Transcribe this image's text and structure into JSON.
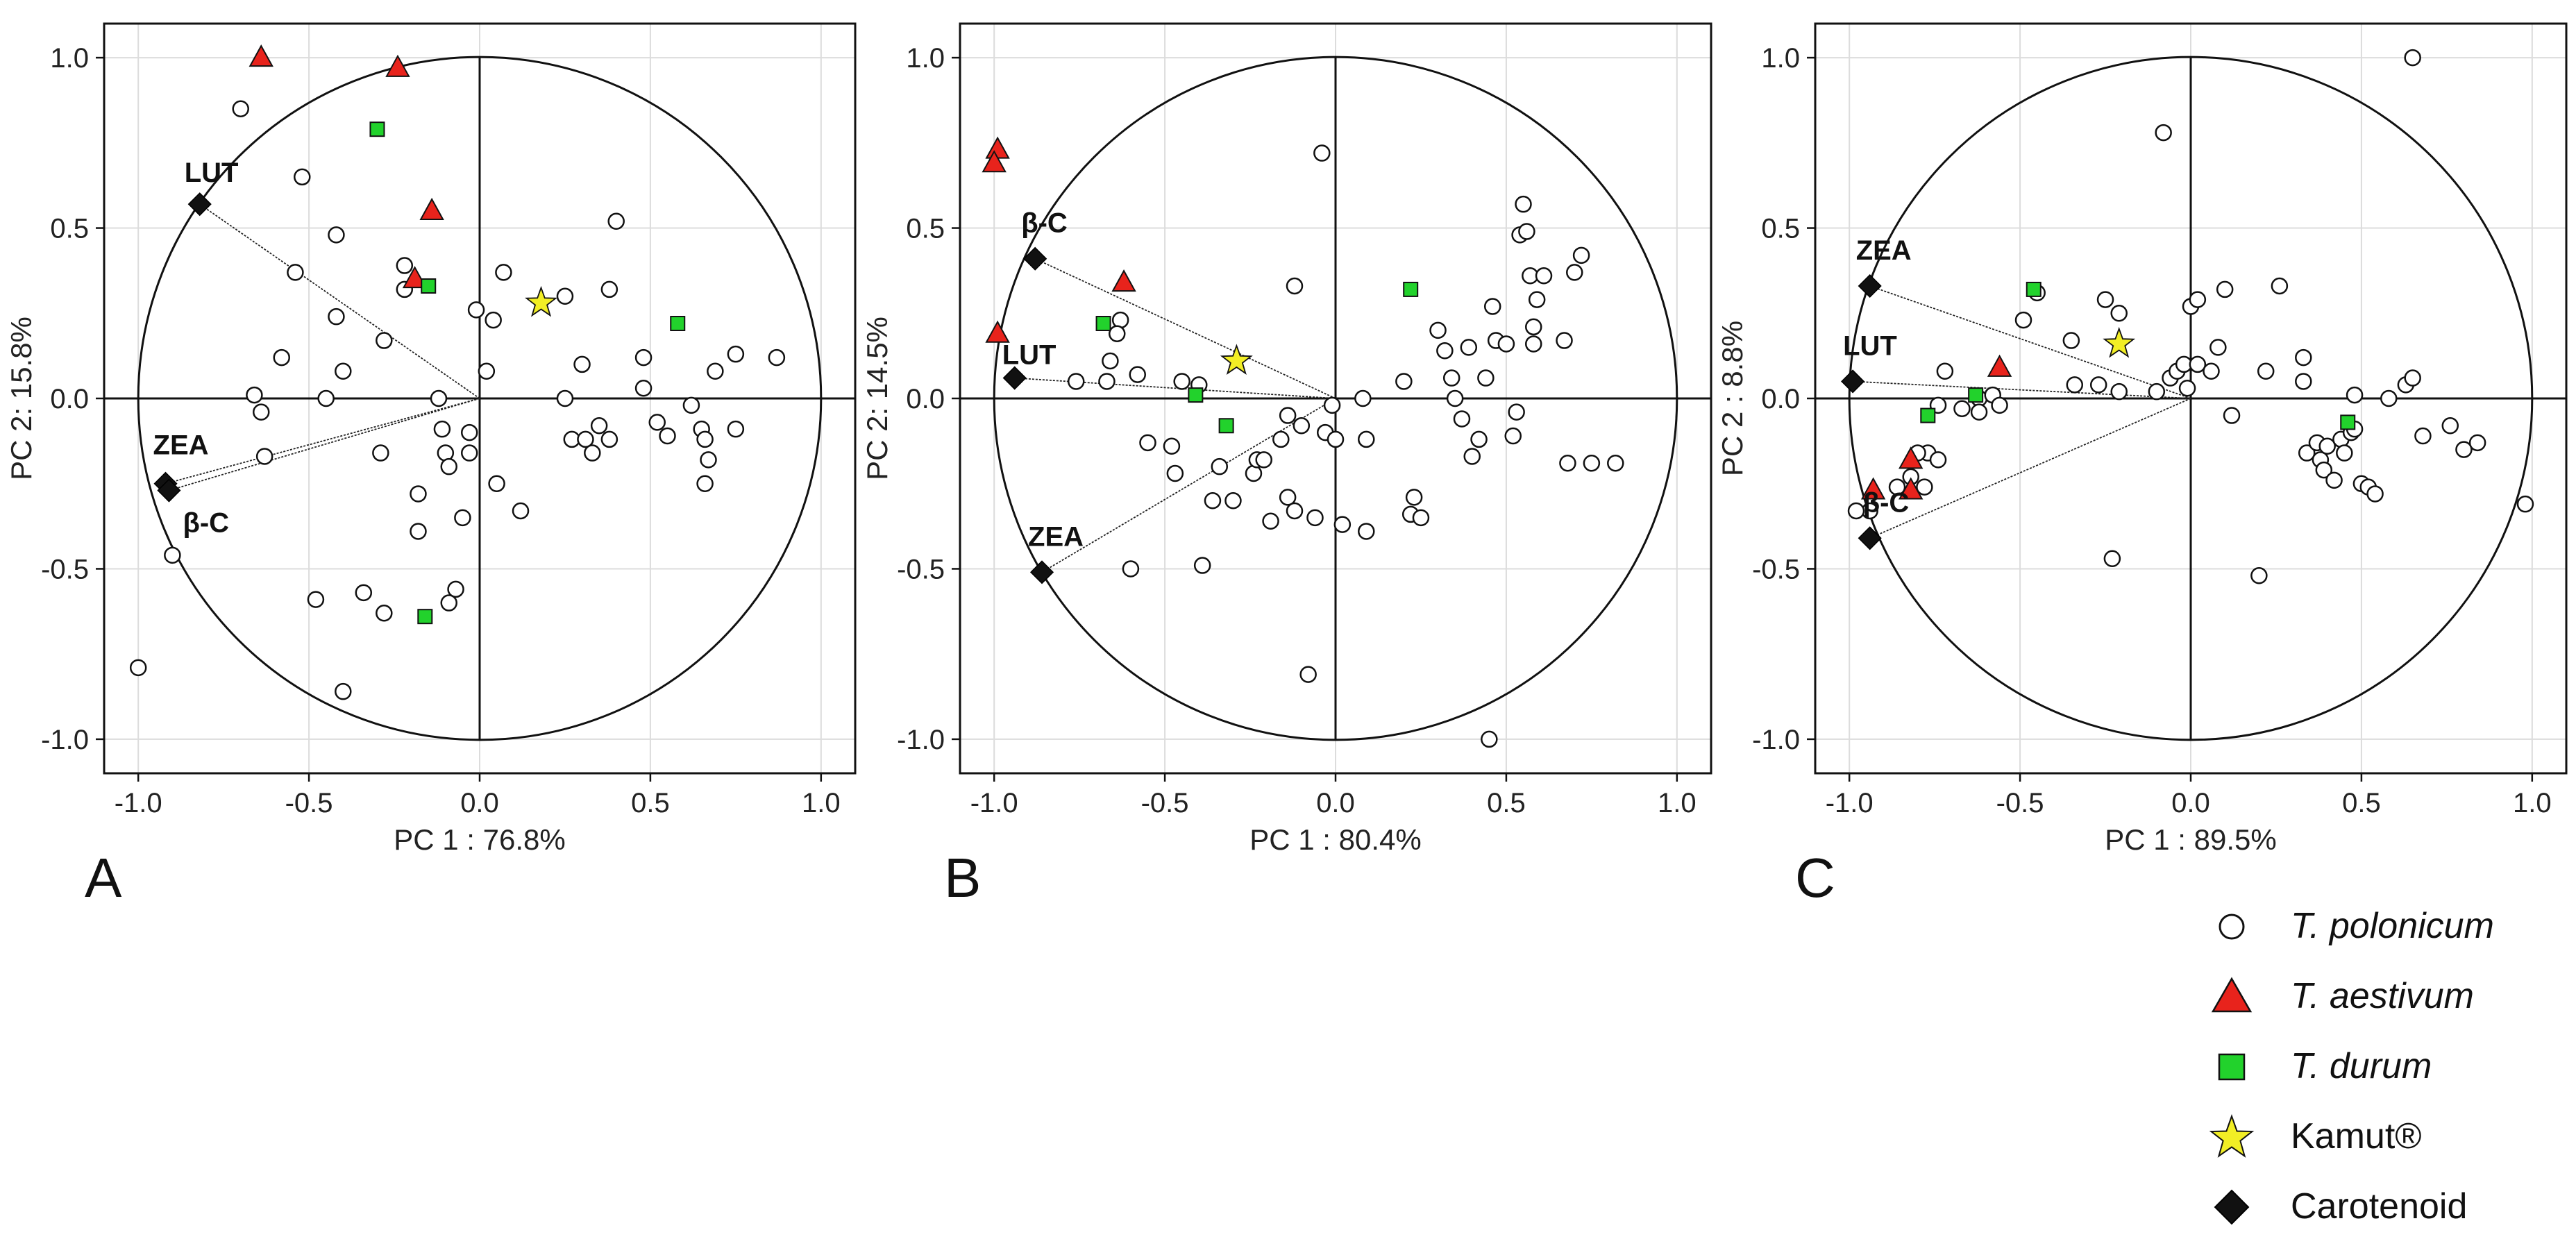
{
  "figure": {
    "title": ""
  },
  "legend": {
    "items": [
      {
        "key": "polonicum",
        "label": "T. polonicum",
        "italic": true,
        "marker": "circle",
        "color": "#ffffff"
      },
      {
        "key": "aestivum",
        "label": "T. aestivum",
        "italic": true,
        "marker": "triangle",
        "color": "#e8231c"
      },
      {
        "key": "durum",
        "label": "T. durum",
        "italic": true,
        "marker": "square",
        "color": "#22d22c"
      },
      {
        "key": "kamut",
        "label": "Kamut®",
        "italic": false,
        "marker": "star",
        "color": "#f2ee25"
      },
      {
        "key": "carotenoid",
        "label": "Carotenoid",
        "italic": false,
        "marker": "diamond",
        "color": "#111111"
      }
    ]
  },
  "chart_data": [
    {
      "panel": "A",
      "type": "scatter",
      "xlabel": "PC 1 : 76.8%",
      "ylabel": "PC 2: 15.8%",
      "xlim": [
        -1.1,
        1.1
      ],
      "ylim": [
        -1.1,
        1.1
      ],
      "xticks": [
        "-1.0",
        "-0.5",
        "0.0",
        "0.5",
        "1.0"
      ],
      "yticks": [
        "1.0",
        "0.5",
        "0.0",
        "-0.5",
        "-1.0"
      ],
      "grid": true,
      "loadings": [
        {
          "label": "LUT",
          "x": -0.82,
          "y": 0.57
        },
        {
          "label": "ZEA",
          "x": -0.92,
          "y": -0.25
        },
        {
          "label": "β-C",
          "x": -0.91,
          "y": -0.27
        }
      ],
      "series": [
        {
          "name": "T. polonicum",
          "points": [
            [
              -0.7,
              0.85
            ],
            [
              -0.52,
              0.65
            ],
            [
              -0.42,
              0.48
            ],
            [
              -0.54,
              0.37
            ],
            [
              -0.42,
              0.24
            ],
            [
              -0.58,
              0.12
            ],
            [
              -0.4,
              0.08
            ],
            [
              -0.28,
              0.17
            ],
            [
              -0.66,
              0.01
            ],
            [
              -0.64,
              -0.04
            ],
            [
              -0.63,
              -0.17
            ],
            [
              -0.45,
              0.0
            ],
            [
              -0.29,
              -0.16
            ],
            [
              -0.22,
              0.39
            ],
            [
              -0.22,
              0.32
            ],
            [
              -0.12,
              0.0
            ],
            [
              -0.11,
              -0.09
            ],
            [
              -0.1,
              -0.16
            ],
            [
              -0.09,
              -0.2
            ],
            [
              -0.03,
              -0.1
            ],
            [
              -0.03,
              -0.16
            ],
            [
              -0.01,
              0.26
            ],
            [
              0.02,
              0.08
            ],
            [
              0.04,
              0.23
            ],
            [
              0.07,
              0.37
            ],
            [
              0.05,
              -0.25
            ],
            [
              0.12,
              -0.33
            ],
            [
              -0.05,
              -0.35
            ],
            [
              -0.18,
              -0.28
            ],
            [
              -0.18,
              -0.39
            ],
            [
              -0.07,
              -0.56
            ],
            [
              -0.09,
              -0.6
            ],
            [
              -0.28,
              -0.63
            ],
            [
              -0.34,
              -0.57
            ],
            [
              -0.48,
              -0.59
            ],
            [
              -0.4,
              -0.86
            ],
            [
              -0.9,
              -0.46
            ],
            [
              -1.0,
              -0.79
            ],
            [
              0.25,
              0.0
            ],
            [
              0.25,
              0.3
            ],
            [
              0.3,
              0.1
            ],
            [
              0.38,
              0.32
            ],
            [
              0.4,
              0.52
            ],
            [
              0.27,
              -0.12
            ],
            [
              0.31,
              -0.12
            ],
            [
              0.33,
              -0.16
            ],
            [
              0.35,
              -0.08
            ],
            [
              0.38,
              -0.12
            ],
            [
              0.48,
              0.03
            ],
            [
              0.48,
              0.12
            ],
            [
              0.52,
              -0.07
            ],
            [
              0.55,
              -0.11
            ],
            [
              0.62,
              -0.02
            ],
            [
              0.65,
              -0.09
            ],
            [
              0.66,
              -0.12
            ],
            [
              0.66,
              -0.25
            ],
            [
              0.67,
              -0.18
            ],
            [
              0.69,
              0.08
            ],
            [
              0.75,
              0.13
            ],
            [
              0.75,
              -0.09
            ],
            [
              0.87,
              0.12
            ]
          ]
        },
        {
          "name": "T. aestivum",
          "points": [
            [
              -0.64,
              1.0
            ],
            [
              -0.24,
              0.97
            ],
            [
              -0.14,
              0.55
            ],
            [
              -0.19,
              0.35
            ]
          ]
        },
        {
          "name": "T. durum",
          "points": [
            [
              -0.3,
              0.79
            ],
            [
              -0.15,
              0.33
            ],
            [
              0.58,
              0.22
            ],
            [
              -0.16,
              -0.64
            ]
          ]
        },
        {
          "name": "Kamut®",
          "points": [
            [
              0.18,
              0.28
            ]
          ]
        }
      ]
    },
    {
      "panel": "B",
      "type": "scatter",
      "xlabel": "PC 1 : 80.4%",
      "ylabel": "PC 2: 14.5%",
      "xlim": [
        -1.1,
        1.1
      ],
      "ylim": [
        -1.1,
        1.1
      ],
      "xticks": [
        "-1.0",
        "-0.5",
        "0.0",
        "0.5",
        "1.0"
      ],
      "yticks": [
        "1.0",
        "0.5",
        "0.0",
        "-0.5",
        "-1.0"
      ],
      "grid": true,
      "loadings": [
        {
          "label": "β-C",
          "x": -0.88,
          "y": 0.41
        },
        {
          "label": "LUT",
          "x": -0.94,
          "y": 0.06
        },
        {
          "label": "ZEA",
          "x": -0.86,
          "y": -0.51
        }
      ],
      "series": [
        {
          "name": "T. polonicum",
          "points": [
            [
              -0.04,
              0.72
            ],
            [
              -0.12,
              0.33
            ],
            [
              -0.63,
              0.23
            ],
            [
              -0.64,
              0.19
            ],
            [
              -0.76,
              0.05
            ],
            [
              -0.67,
              0.05
            ],
            [
              -0.66,
              0.11
            ],
            [
              -0.45,
              0.05
            ],
            [
              -0.4,
              0.04
            ],
            [
              -0.58,
              0.07
            ],
            [
              -0.55,
              -0.13
            ],
            [
              -0.48,
              -0.14
            ],
            [
              -0.47,
              -0.22
            ],
            [
              -0.34,
              -0.2
            ],
            [
              -0.36,
              -0.3
            ],
            [
              -0.3,
              -0.3
            ],
            [
              -0.24,
              -0.22
            ],
            [
              -0.23,
              -0.18
            ],
            [
              -0.21,
              -0.18
            ],
            [
              -0.16,
              -0.12
            ],
            [
              -0.19,
              -0.36
            ],
            [
              -0.14,
              -0.05
            ],
            [
              -0.14,
              -0.29
            ],
            [
              -0.12,
              -0.33
            ],
            [
              -0.1,
              -0.08
            ],
            [
              -0.06,
              -0.35
            ],
            [
              -0.08,
              -0.81
            ],
            [
              -0.03,
              -0.1
            ],
            [
              -0.01,
              -0.02
            ],
            [
              0.0,
              -0.12
            ],
            [
              0.02,
              -0.37
            ],
            [
              0.08,
              0.0
            ],
            [
              0.09,
              -0.12
            ],
            [
              0.09,
              -0.39
            ],
            [
              -0.39,
              -0.49
            ],
            [
              -0.6,
              -0.5
            ],
            [
              0.2,
              0.05
            ],
            [
              0.23,
              -0.29
            ],
            [
              0.22,
              -0.34
            ],
            [
              0.25,
              -0.35
            ],
            [
              0.3,
              0.2
            ],
            [
              0.32,
              0.14
            ],
            [
              0.34,
              0.06
            ],
            [
              0.35,
              0.0
            ],
            [
              0.37,
              -0.06
            ],
            [
              0.39,
              0.15
            ],
            [
              0.4,
              -0.17
            ],
            [
              0.42,
              -0.12
            ],
            [
              0.44,
              0.06
            ],
            [
              0.46,
              0.27
            ],
            [
              0.47,
              0.17
            ],
            [
              0.5,
              0.16
            ],
            [
              0.52,
              -0.11
            ],
            [
              0.53,
              -0.04
            ],
            [
              0.54,
              0.48
            ],
            [
              0.55,
              0.57
            ],
            [
              0.56,
              0.49
            ],
            [
              0.57,
              0.36
            ],
            [
              0.58,
              0.21
            ],
            [
              0.58,
              0.16
            ],
            [
              0.59,
              0.29
            ],
            [
              0.61,
              0.36
            ],
            [
              0.67,
              0.17
            ],
            [
              0.68,
              -0.19
            ],
            [
              0.7,
              0.37
            ],
            [
              0.72,
              0.42
            ],
            [
              0.75,
              -0.19
            ],
            [
              0.82,
              -0.19
            ],
            [
              0.45,
              -1.0
            ]
          ]
        },
        {
          "name": "T. aestivum",
          "points": [
            [
              -0.99,
              0.73
            ],
            [
              -1.0,
              0.69
            ],
            [
              -0.99,
              0.19
            ],
            [
              -0.62,
              0.34
            ]
          ]
        },
        {
          "name": "T. durum",
          "points": [
            [
              -0.68,
              0.22
            ],
            [
              -0.41,
              0.01
            ],
            [
              -0.32,
              -0.08
            ],
            [
              0.22,
              0.32
            ]
          ]
        },
        {
          "name": "Kamut®",
          "points": [
            [
              -0.29,
              0.11
            ]
          ]
        }
      ]
    },
    {
      "panel": "C",
      "type": "scatter",
      "xlabel": "PC 1 : 89.5%",
      "ylabel": "PC 2 : 8.8%",
      "xlim": [
        -1.1,
        1.1
      ],
      "ylim": [
        -1.1,
        1.1
      ],
      "xticks": [
        "-1.0",
        "-0.5",
        "0.0",
        "0.5",
        "1.0"
      ],
      "yticks": [
        "1.0",
        "0.5",
        "0.0",
        "-0.5",
        "-1.0"
      ],
      "grid": true,
      "loadings": [
        {
          "label": "ZEA",
          "x": -0.94,
          "y": 0.33
        },
        {
          "label": "LUT",
          "x": -0.99,
          "y": 0.05
        },
        {
          "label": "β-C",
          "x": -0.94,
          "y": -0.41
        }
      ],
      "series": [
        {
          "name": "T. polonicum",
          "points": [
            [
              0.65,
              1.0
            ],
            [
              -0.08,
              0.78
            ],
            [
              -0.45,
              0.31
            ],
            [
              -0.49,
              0.23
            ],
            [
              -0.35,
              0.17
            ],
            [
              -0.25,
              0.29
            ],
            [
              -0.21,
              0.25
            ],
            [
              -0.34,
              0.04
            ],
            [
              -0.27,
              0.04
            ],
            [
              -0.21,
              0.02
            ],
            [
              -0.1,
              0.02
            ],
            [
              -0.06,
              0.06
            ],
            [
              -0.04,
              0.08
            ],
            [
              -0.02,
              0.1
            ],
            [
              -0.01,
              0.03
            ],
            [
              0.0,
              0.27
            ],
            [
              0.02,
              0.29
            ],
            [
              0.02,
              0.1
            ],
            [
              0.06,
              0.08
            ],
            [
              0.08,
              0.15
            ],
            [
              0.1,
              0.32
            ],
            [
              0.12,
              -0.05
            ],
            [
              0.22,
              0.08
            ],
            [
              0.26,
              0.33
            ],
            [
              -0.62,
              0.0
            ],
            [
              -0.58,
              0.01
            ],
            [
              -0.56,
              -0.02
            ],
            [
              -0.62,
              -0.04
            ],
            [
              -0.67,
              -0.03
            ],
            [
              -0.72,
              0.08
            ],
            [
              -0.74,
              -0.02
            ],
            [
              -0.77,
              -0.16
            ],
            [
              -0.74,
              -0.18
            ],
            [
              -0.8,
              -0.16
            ],
            [
              -0.78,
              -0.26
            ],
            [
              -0.82,
              -0.23
            ],
            [
              -0.86,
              -0.26
            ],
            [
              -0.94,
              -0.33
            ],
            [
              -0.98,
              -0.33
            ],
            [
              -0.23,
              -0.47
            ],
            [
              0.2,
              -0.52
            ],
            [
              0.33,
              0.12
            ],
            [
              0.33,
              0.05
            ],
            [
              0.34,
              -0.16
            ],
            [
              0.37,
              -0.13
            ],
            [
              0.38,
              -0.18
            ],
            [
              0.39,
              -0.21
            ],
            [
              0.4,
              -0.14
            ],
            [
              0.42,
              -0.24
            ],
            [
              0.44,
              -0.12
            ],
            [
              0.45,
              -0.16
            ],
            [
              0.47,
              -0.1
            ],
            [
              0.48,
              -0.09
            ],
            [
              0.48,
              0.01
            ],
            [
              0.5,
              -0.25
            ],
            [
              0.52,
              -0.26
            ],
            [
              0.54,
              -0.28
            ],
            [
              0.58,
              0.0
            ],
            [
              0.63,
              0.04
            ],
            [
              0.65,
              0.06
            ],
            [
              0.68,
              -0.11
            ],
            [
              0.76,
              -0.08
            ],
            [
              0.8,
              -0.15
            ],
            [
              0.84,
              -0.13
            ],
            [
              0.98,
              -0.31
            ]
          ]
        },
        {
          "name": "T. aestivum",
          "points": [
            [
              -0.56,
              0.09
            ],
            [
              -0.82,
              -0.18
            ],
            [
              -0.93,
              -0.27
            ],
            [
              -0.82,
              -0.27
            ]
          ]
        },
        {
          "name": "T. durum",
          "points": [
            [
              -0.46,
              0.32
            ],
            [
              -0.63,
              0.01
            ],
            [
              -0.77,
              -0.05
            ],
            [
              0.46,
              -0.07
            ]
          ]
        },
        {
          "name": "Kamut®",
          "points": [
            [
              -0.21,
              0.16
            ]
          ]
        }
      ]
    }
  ]
}
